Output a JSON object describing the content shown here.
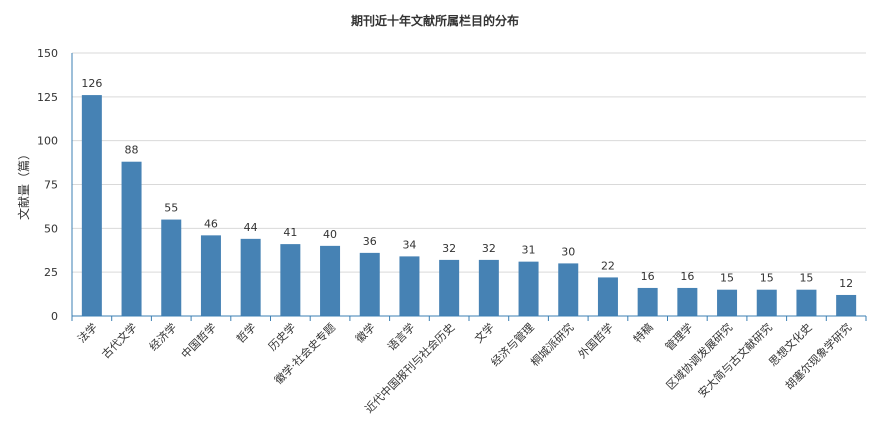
{
  "chart_data": {
    "type": "bar",
    "title": "期刊近十年文献所属栏目的分布",
    "xlabel": "",
    "ylabel": "文献量（篇）",
    "ylim": [
      0,
      150
    ],
    "yticks": [
      0,
      25,
      50,
      75,
      100,
      125,
      150
    ],
    "grid": true,
    "legend": "none",
    "bar_color": "#4682b4",
    "categories": [
      "法学",
      "古代文学",
      "经济学",
      "中国哲学",
      "哲学",
      "历史学",
      "徽学·社会史专题",
      "徽学",
      "语言学",
      "近代中国报刊与社会历史",
      "文学",
      "经济与管理",
      "桐城派研究",
      "外国哲学",
      "特稿",
      "管理学",
      "区域协调发展研究",
      "安大简与古文献研究",
      "思想文化史",
      "胡塞尔现象学研究"
    ],
    "values": [
      126,
      88,
      55,
      46,
      44,
      41,
      40,
      36,
      34,
      32,
      32,
      31,
      30,
      22,
      16,
      16,
      15,
      15,
      15,
      12
    ]
  }
}
